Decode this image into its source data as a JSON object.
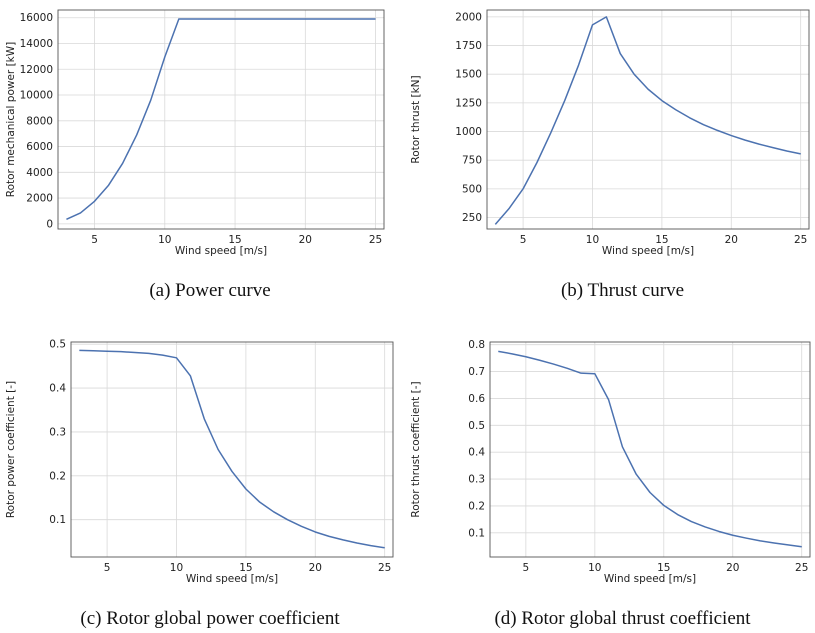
{
  "chart_data": [
    {
      "type": "line",
      "caption": "(a) Power curve",
      "xlabel": "Wind speed [m/s]",
      "ylabel": "Rotor mechanical power [kW]",
      "xlim": [
        2.4,
        25.6
      ],
      "ylim": [
        -400,
        16600
      ],
      "xticks": [
        5,
        10,
        15,
        20,
        25
      ],
      "yticks": [
        0,
        2000,
        4000,
        6000,
        8000,
        10000,
        12000,
        14000,
        16000
      ],
      "grid": true,
      "color": "#4c72b0",
      "x": [
        3,
        4,
        5,
        6,
        7,
        8,
        9,
        10,
        11,
        12,
        13,
        14,
        15,
        16,
        17,
        18,
        19,
        20,
        21,
        22,
        23,
        24,
        25
      ],
      "y": [
        350,
        850,
        1750,
        3000,
        4700,
        6900,
        9600,
        12950,
        15900,
        15900,
        15900,
        15900,
        15900,
        15900,
        15900,
        15900,
        15900,
        15900,
        15900,
        15900,
        15900,
        15900,
        15900
      ]
    },
    {
      "type": "line",
      "caption": "(b) Thrust curve",
      "xlabel": "Wind speed [m/s]",
      "ylabel": "Rotor thrust [kN]",
      "xlim": [
        2.4,
        25.6
      ],
      "ylim": [
        150,
        2060
      ],
      "xticks": [
        5,
        10,
        15,
        20,
        25
      ],
      "yticks": [
        250,
        500,
        750,
        1000,
        1250,
        1500,
        1750,
        2000
      ],
      "grid": true,
      "color": "#4c72b0",
      "x": [
        3,
        4,
        5,
        6,
        7,
        8,
        9,
        10,
        11,
        12,
        13,
        14,
        15,
        16,
        17,
        18,
        19,
        20,
        21,
        22,
        23,
        24,
        25
      ],
      "y": [
        190,
        330,
        500,
        730,
        990,
        1270,
        1580,
        1930,
        2000,
        1680,
        1500,
        1370,
        1270,
        1190,
        1120,
        1060,
        1010,
        965,
        925,
        890,
        860,
        830,
        805
      ]
    },
    {
      "type": "line",
      "caption": "(c) Rotor global power coefficient",
      "xlabel": "Wind speed [m/s]",
      "ylabel": "Rotor power coefficient [-]",
      "xlim": [
        2.4,
        25.6
      ],
      "ylim": [
        0.015,
        0.505
      ],
      "xticks": [
        5,
        10,
        15,
        20,
        25
      ],
      "yticks": [
        0.1,
        0.2,
        0.3,
        0.4,
        0.5
      ],
      "grid": true,
      "color": "#4c72b0",
      "x": [
        3,
        4,
        5,
        6,
        7,
        8,
        9,
        10,
        11,
        12,
        13,
        14,
        15,
        16,
        17,
        18,
        19,
        20,
        21,
        22,
        23,
        24,
        25
      ],
      "y": [
        0.486,
        0.485,
        0.484,
        0.483,
        0.481,
        0.479,
        0.475,
        0.469,
        0.428,
        0.33,
        0.26,
        0.21,
        0.17,
        0.14,
        0.118,
        0.1,
        0.085,
        0.072,
        0.062,
        0.054,
        0.047,
        0.041,
        0.036
      ]
    },
    {
      "type": "line",
      "caption": "(d) Rotor global thrust coefficient",
      "xlabel": "Wind speed [m/s]",
      "ylabel": "Rotor thrust coefficient [-]",
      "xlim": [
        2.4,
        25.6
      ],
      "ylim": [
        0.01,
        0.81
      ],
      "xticks": [
        5,
        10,
        15,
        20,
        25
      ],
      "yticks": [
        0.1,
        0.2,
        0.3,
        0.4,
        0.5,
        0.6,
        0.7,
        0.8
      ],
      "grid": true,
      "color": "#4c72b0",
      "x": [
        3,
        4,
        5,
        6,
        7,
        8,
        9,
        10,
        11,
        12,
        13,
        14,
        15,
        16,
        17,
        18,
        19,
        20,
        21,
        22,
        23,
        24,
        25
      ],
      "y": [
        0.775,
        0.766,
        0.755,
        0.742,
        0.728,
        0.712,
        0.694,
        0.692,
        0.595,
        0.42,
        0.318,
        0.25,
        0.202,
        0.168,
        0.142,
        0.122,
        0.105,
        0.091,
        0.08,
        0.07,
        0.062,
        0.055,
        0.048
      ]
    }
  ]
}
